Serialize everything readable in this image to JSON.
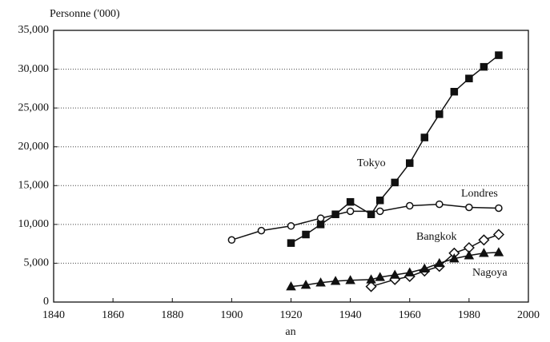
{
  "chart_data": {
    "type": "line",
    "y_label": "Personne ('000)",
    "x_label": "an",
    "xlim": [
      1840,
      2000
    ],
    "xticks": [
      1840,
      1860,
      1880,
      1900,
      1920,
      1940,
      1960,
      1980,
      2000
    ],
    "ylim": [
      0,
      35000
    ],
    "yticks": [
      0,
      {
        "value": 5000,
        "label": "5,000"
      },
      {
        "value": 10000,
        "label": "10,000"
      },
      {
        "value": 15000,
        "label": "15,000"
      },
      {
        "value": 20000,
        "label": "20,000"
      },
      {
        "value": 25000,
        "label": "25,000"
      },
      {
        "value": 30000,
        "label": "30,000"
      },
      {
        "value": 35000,
        "label": "35,000"
      }
    ],
    "grid": true,
    "series": [
      {
        "name": "Tokyo",
        "color": "#111111",
        "marker": "square",
        "filled": true,
        "x": [
          1920,
          1925,
          1930,
          1935,
          1940,
          1947,
          1950,
          1955,
          1960,
          1965,
          1970,
          1975,
          1980,
          1985,
          1990
        ],
        "values": [
          7600,
          8700,
          10000,
          11300,
          12900,
          11300,
          13100,
          15400,
          17900,
          21200,
          24200,
          27100,
          28800,
          30300,
          31800
        ]
      },
      {
        "name": "Londres",
        "color": "#111111",
        "marker": "circle",
        "filled": false,
        "x": [
          1900,
          1910,
          1920,
          1930,
          1940,
          1950,
          1960,
          1970,
          1980,
          1990
        ],
        "values": [
          8000,
          9200,
          9800,
          10800,
          11700,
          11700,
          12400,
          12600,
          12200,
          12100
        ]
      },
      {
        "name": "Bangkok",
        "color": "#111111",
        "marker": "diamond",
        "filled": false,
        "x": [
          1947,
          1955,
          1960,
          1965,
          1970,
          1975,
          1980,
          1985,
          1990
        ],
        "values": [
          2000,
          2900,
          3300,
          4000,
          4600,
          6300,
          7000,
          8000,
          8700
        ]
      },
      {
        "name": "Nagoya",
        "color": "#111111",
        "marker": "triangle",
        "filled": true,
        "x": [
          1920,
          1925,
          1930,
          1935,
          1940,
          1947,
          1950,
          1955,
          1960,
          1965,
          1970,
          1975,
          1980,
          1985,
          1990
        ],
        "values": [
          2000,
          2200,
          2500,
          2700,
          2800,
          2900,
          3200,
          3500,
          3800,
          4300,
          5000,
          5600,
          6000,
          6300,
          6400
        ]
      }
    ]
  }
}
